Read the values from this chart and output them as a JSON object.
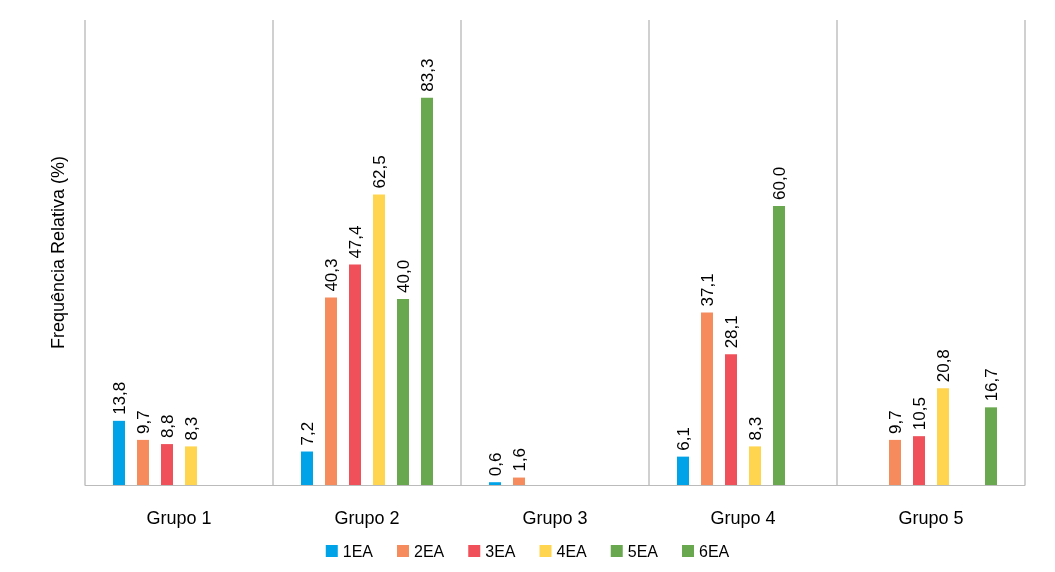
{
  "chart_data": {
    "type": "bar",
    "ylabel": "Frequência Relativa (%)",
    "categories": [
      "Grupo 1",
      "Grupo 2",
      "Grupo 3",
      "Grupo 4",
      "Grupo 5"
    ],
    "series": [
      {
        "name": "1EA",
        "color": "#00a3e8",
        "values": [
          13.8,
          7.2,
          0.6,
          6.1,
          null
        ],
        "value_labels": [
          "13,8",
          "7,2",
          "0,6",
          "6,1",
          null
        ]
      },
      {
        "name": "2EA",
        "color": "#f68b5e",
        "values": [
          9.7,
          40.3,
          1.6,
          37.1,
          9.7
        ],
        "value_labels": [
          "9,7",
          "40,3",
          "1,6",
          "37,1",
          "9,7"
        ]
      },
      {
        "name": "3EA",
        "color": "#f0505a",
        "values": [
          8.8,
          47.4,
          null,
          28.1,
          10.5
        ],
        "value_labels": [
          "8,8",
          "47,4",
          null,
          "28,1",
          "10,5"
        ]
      },
      {
        "name": "4EA",
        "color": "#ffd54f",
        "values": [
          8.3,
          62.5,
          null,
          8.3,
          20.8
        ],
        "value_labels": [
          "8,3",
          "62,5",
          null,
          "8,3",
          "20,8"
        ]
      },
      {
        "name": "5EA",
        "color": "#6aa84f",
        "values": [
          null,
          40.0,
          null,
          60.0,
          null
        ],
        "value_labels": [
          null,
          "40,0",
          null,
          "60,0",
          null
        ]
      },
      {
        "name": "6EA",
        "color": "#6aa84f",
        "values": [
          null,
          83.3,
          null,
          null,
          16.7
        ],
        "value_labels": [
          null,
          "83,3",
          null,
          null,
          "16,7"
        ]
      }
    ],
    "grid": "x",
    "legend": "bottom"
  }
}
